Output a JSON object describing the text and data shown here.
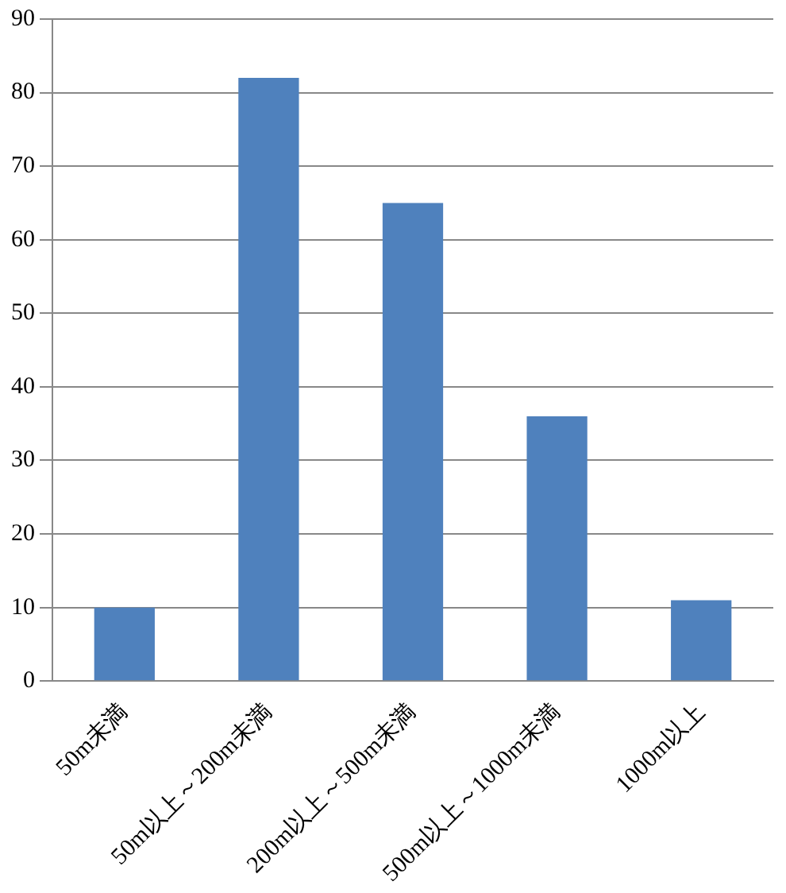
{
  "chart_data": {
    "type": "bar",
    "categories": [
      "50m未満",
      "50m以上～200m未満",
      "200m以上～500m未満",
      "500m以上～1000m未満",
      "1000m以上"
    ],
    "values": [
      10,
      82,
      65,
      36,
      11
    ],
    "color": "#4f81bd",
    "ylim": [
      0,
      90
    ],
    "yticks": [
      0,
      10,
      20,
      30,
      40,
      50,
      60,
      70,
      80,
      90
    ],
    "grid": "y",
    "legend": false
  }
}
